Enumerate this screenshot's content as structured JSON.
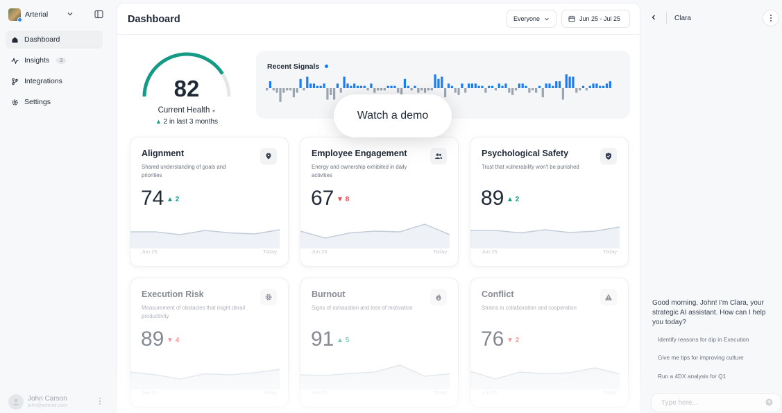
{
  "sidebar": {
    "workspace": {
      "name": "Arterial"
    },
    "items": [
      {
        "label": "Dashboard",
        "icon": "home-icon",
        "active": true
      },
      {
        "label": "Insights",
        "icon": "activity-icon",
        "badge": "3"
      },
      {
        "label": "Integrations",
        "icon": "git-branch-icon"
      },
      {
        "label": "Settings",
        "icon": "gear-icon"
      }
    ],
    "user": {
      "name": "John Carson",
      "email": "john@arterial.com"
    }
  },
  "header": {
    "title": "Dashboard",
    "audience": "Everyone",
    "date_range": "Jun 25 - Jul 25"
  },
  "health": {
    "score": "82",
    "score_value": 82,
    "label": "Current Health",
    "change": "2",
    "change_text": "in last 3 months"
  },
  "signals": {
    "title": "Recent Signals",
    "bar_colors": {
      "positive": "#1a7cf2",
      "negative": "#9aa5b1"
    },
    "values": [
      -1,
      3,
      -1,
      -2,
      -6,
      -2,
      -1,
      -1,
      -4,
      -2,
      4,
      -1,
      5,
      2,
      2,
      1,
      1,
      2,
      -5,
      -3,
      -5,
      2,
      -2,
      5,
      2,
      1,
      2,
      1,
      1,
      1,
      -1,
      2,
      -2,
      -1,
      -1,
      -1,
      1,
      1,
      1,
      -2,
      -4,
      4,
      1,
      -1,
      1,
      -2,
      -1,
      -2,
      -1,
      -1,
      6,
      4,
      5,
      -4,
      2,
      1,
      -2,
      -3,
      2,
      -2,
      2,
      2,
      2,
      1,
      1,
      -2,
      1,
      1,
      -1,
      2,
      1,
      2,
      -2,
      -3,
      -1,
      2,
      2,
      1,
      -2,
      -1,
      -2,
      1,
      -4,
      2,
      2,
      1,
      3,
      3,
      -5,
      6,
      5,
      5,
      -2,
      -1,
      1,
      -1,
      1,
      2,
      2,
      1,
      1,
      2,
      3
    ]
  },
  "demo": {
    "label": "Watch a demo"
  },
  "colors": {
    "accent": "#149a85",
    "down": "#e5484d",
    "brand": "#1a7cf2"
  },
  "cards": [
    {
      "title": "Alignment",
      "desc": "Shared understanding of goals and priorities",
      "score": "74",
      "change": "2",
      "direction": "up",
      "icon": "map-pin-icon",
      "x_start": "Jun 25",
      "x_end": "Today",
      "trend": [
        58,
        58,
        50,
        62,
        55,
        52,
        64
      ]
    },
    {
      "title": "Employee Engagement",
      "desc": "Energy and ownership exhibited in daily activities",
      "score": "67",
      "change": "8",
      "direction": "down",
      "icon": "users-icon",
      "x_start": "Jun 25",
      "x_end": "Today",
      "trend": [
        60,
        40,
        55,
        60,
        58,
        80,
        50
      ]
    },
    {
      "title": "Psychological Safety",
      "desc": "Trust that vulnerability won't be punished",
      "score": "89",
      "change": "2",
      "direction": "up",
      "icon": "shield-icon",
      "x_start": "Jun 25",
      "x_end": "Today",
      "trend": [
        62,
        62,
        55,
        64,
        56,
        60,
        72
      ]
    },
    {
      "title": "Execution Risk",
      "desc": "Measurement of obstacles that might derail productivity",
      "score": "89",
      "change": "4",
      "direction": "down",
      "icon": "gear-icon",
      "x_start": "Jun 25",
      "x_end": "Today",
      "trend": [
        60,
        52,
        40,
        55,
        52,
        58,
        68
      ]
    },
    {
      "title": "Burnout",
      "desc": "Signs of exhaustion and loss of motivation",
      "score": "91",
      "change": "5",
      "direction": "up",
      "icon": "flame-icon",
      "x_start": "Jun 25",
      "x_end": "Today",
      "trend": [
        52,
        50,
        56,
        60,
        80,
        48,
        55
      ]
    },
    {
      "title": "Conflict",
      "desc": "Strains in collaboration and cooperation",
      "score": "76",
      "change": "2",
      "direction": "down",
      "icon": "warning-icon",
      "x_start": "Jun 25",
      "x_end": "Today",
      "trend": [
        62,
        40,
        60,
        55,
        58,
        72,
        55
      ]
    }
  ],
  "assistant": {
    "name": "Clara",
    "greeting": "Good morning, John! I'm Clara, your strategic AI assistant. How can I help you today?",
    "suggestions": [
      "Identify reasons for dip in Execution",
      "Give me tips for improving culture",
      "Run a 4DX analysis for Q1"
    ],
    "input_placeholder": "Type here..."
  }
}
